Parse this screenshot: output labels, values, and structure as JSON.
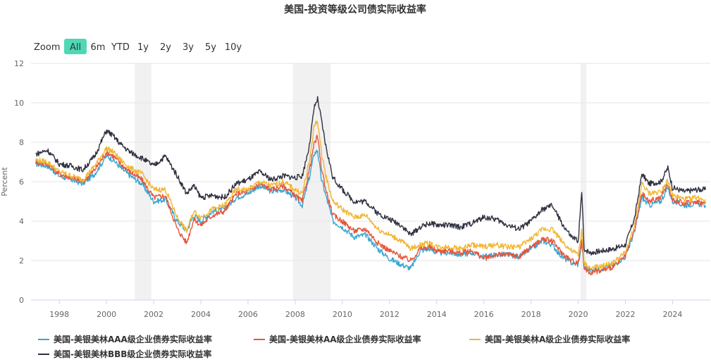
{
  "chart_data": {
    "type": "line",
    "title": "美国-投资等级公司债实际收益率",
    "xlabel": "",
    "ylabel": "Percent",
    "xlim": [
      1996.8,
      2025.6
    ],
    "ylim": [
      0,
      12
    ],
    "y_ticks": [
      0,
      2,
      4,
      6,
      8,
      10,
      12
    ],
    "x_ticks": [
      "1998",
      "2000",
      "2002",
      "2004",
      "2006",
      "2008",
      "2010",
      "2012",
      "2014",
      "2016",
      "2018",
      "2020",
      "2022",
      "2024"
    ],
    "recessions": [
      [
        2001.2,
        2001.9
      ],
      [
        2007.9,
        2009.5
      ],
      [
        2020.1,
        2020.35
      ]
    ],
    "series": [
      {
        "name": "美国-美银美林AAA级企业债券实际收益率",
        "color": "#3ba7d1",
        "x": [
          1997.0,
          1997.5,
          1998.0,
          1998.5,
          1999.0,
          1999.5,
          2000.0,
          2000.3,
          2000.6,
          2001.0,
          2001.5,
          2002.0,
          2002.5,
          2003.0,
          2003.4,
          2003.7,
          2004.0,
          2004.5,
          2005.0,
          2005.5,
          2006.0,
          2006.5,
          2007.0,
          2007.5,
          2008.0,
          2008.3,
          2008.6,
          2008.8,
          2008.95,
          2009.1,
          2009.3,
          2009.6,
          2010.0,
          2010.5,
          2011.0,
          2011.5,
          2012.0,
          2012.5,
          2012.9,
          2013.3,
          2013.7,
          2014.0,
          2014.5,
          2015.0,
          2015.5,
          2016.0,
          2016.5,
          2017.0,
          2017.5,
          2018.0,
          2018.5,
          2018.9,
          2019.3,
          2019.7,
          2020.0,
          2020.15,
          2020.25,
          2020.5,
          2021.0,
          2021.5,
          2022.0,
          2022.4,
          2022.7,
          2023.0,
          2023.5,
          2023.8,
          2024.0,
          2024.5,
          2025.0,
          2025.4
        ],
        "y": [
          6.9,
          6.8,
          6.3,
          6.1,
          5.9,
          6.4,
          7.3,
          7.1,
          6.7,
          6.3,
          5.9,
          5.0,
          5.1,
          4.0,
          3.5,
          4.3,
          4.0,
          4.5,
          4.6,
          5.2,
          5.4,
          5.8,
          5.5,
          5.6,
          5.2,
          4.8,
          6.2,
          7.4,
          7.6,
          6.2,
          5.3,
          4.0,
          3.7,
          3.2,
          3.3,
          2.6,
          2.1,
          1.8,
          1.6,
          2.5,
          2.6,
          2.4,
          2.4,
          2.3,
          2.4,
          2.2,
          2.3,
          2.3,
          2.2,
          2.6,
          3.0,
          2.8,
          2.2,
          1.9,
          1.8,
          2.9,
          1.7,
          1.5,
          1.6,
          1.8,
          2.2,
          3.5,
          5.2,
          4.8,
          5.0,
          5.7,
          5.0,
          4.8,
          4.9,
          4.8
        ]
      },
      {
        "name": "美国-美银美林AA级企业债券实际收益率",
        "color": "#e8553a",
        "x": [
          1997.0,
          1997.5,
          1998.0,
          1998.5,
          1999.0,
          1999.5,
          2000.0,
          2000.3,
          2000.6,
          2001.0,
          2001.5,
          2002.0,
          2002.5,
          2003.0,
          2003.4,
          2003.7,
          2004.0,
          2004.5,
          2005.0,
          2005.5,
          2006.0,
          2006.5,
          2007.0,
          2007.5,
          2008.0,
          2008.3,
          2008.6,
          2008.8,
          2008.95,
          2009.1,
          2009.3,
          2009.6,
          2010.0,
          2010.5,
          2011.0,
          2011.5,
          2012.0,
          2012.5,
          2012.9,
          2013.3,
          2013.7,
          2014.0,
          2014.5,
          2015.0,
          2015.5,
          2016.0,
          2016.5,
          2017.0,
          2017.5,
          2018.0,
          2018.5,
          2018.9,
          2019.3,
          2019.7,
          2020.0,
          2020.15,
          2020.25,
          2020.5,
          2021.0,
          2021.5,
          2022.0,
          2022.4,
          2022.7,
          2023.0,
          2023.5,
          2023.8,
          2024.0,
          2024.5,
          2025.0,
          2025.4
        ],
        "y": [
          7.0,
          6.9,
          6.4,
          6.2,
          6.0,
          6.6,
          7.5,
          7.3,
          6.9,
          6.5,
          6.1,
          5.2,
          5.3,
          3.6,
          2.9,
          4.1,
          3.8,
          4.3,
          4.5,
          5.4,
          5.5,
          5.9,
          5.6,
          5.8,
          5.3,
          5.0,
          6.6,
          7.9,
          8.3,
          6.8,
          5.6,
          4.3,
          4.0,
          3.5,
          3.6,
          2.9,
          2.5,
          2.2,
          2.0,
          2.6,
          2.7,
          2.5,
          2.5,
          2.4,
          2.5,
          2.1,
          2.3,
          2.3,
          2.2,
          2.7,
          3.1,
          3.0,
          2.4,
          2.0,
          1.9,
          3.1,
          1.6,
          1.4,
          1.5,
          1.7,
          2.2,
          3.6,
          5.4,
          5.0,
          5.2,
          5.9,
          5.1,
          4.9,
          5.0,
          4.9
        ]
      },
      {
        "name": "美国-美银美林A级企业债券实际收益率",
        "color": "#f2b632",
        "x": [
          1997.0,
          1997.5,
          1998.0,
          1998.5,
          1999.0,
          1999.5,
          2000.0,
          2000.3,
          2000.6,
          2001.0,
          2001.5,
          2002.0,
          2002.5,
          2003.0,
          2003.4,
          2003.7,
          2004.0,
          2004.5,
          2005.0,
          2005.5,
          2006.0,
          2006.5,
          2007.0,
          2007.5,
          2008.0,
          2008.3,
          2008.6,
          2008.8,
          2008.95,
          2009.1,
          2009.3,
          2009.6,
          2010.0,
          2010.5,
          2011.0,
          2011.5,
          2012.0,
          2012.5,
          2012.9,
          2013.3,
          2013.7,
          2014.0,
          2014.5,
          2015.0,
          2015.5,
          2016.0,
          2016.5,
          2017.0,
          2017.5,
          2018.0,
          2018.5,
          2018.9,
          2019.3,
          2019.7,
          2020.0,
          2020.15,
          2020.25,
          2020.5,
          2021.0,
          2021.5,
          2022.0,
          2022.4,
          2022.7,
          2023.0,
          2023.5,
          2023.8,
          2024.0,
          2024.5,
          2025.0,
          2025.4
        ],
        "y": [
          7.1,
          7.0,
          6.5,
          6.3,
          6.1,
          6.8,
          7.7,
          7.5,
          7.1,
          6.7,
          6.4,
          5.6,
          5.6,
          4.2,
          3.5,
          4.5,
          4.2,
          4.6,
          4.8,
          5.6,
          5.6,
          6.0,
          5.8,
          6.0,
          5.6,
          5.4,
          7.0,
          8.8,
          9.1,
          7.6,
          6.3,
          5.0,
          4.6,
          4.2,
          4.3,
          3.6,
          3.3,
          3.0,
          2.6,
          2.8,
          2.9,
          2.7,
          2.7,
          2.6,
          2.8,
          2.7,
          2.8,
          2.7,
          2.7,
          3.1,
          3.6,
          3.6,
          3.0,
          2.5,
          2.3,
          3.5,
          1.9,
          1.6,
          1.7,
          1.9,
          2.4,
          3.8,
          5.9,
          5.4,
          5.5,
          6.1,
          5.3,
          5.1,
          5.2,
          5.1
        ]
      },
      {
        "name": "美国-美银美林BBB级企业债券实际收益率",
        "color": "#2f3140",
        "x": [
          1997.0,
          1997.5,
          1998.0,
          1998.5,
          1999.0,
          1999.5,
          2000.0,
          2000.3,
          2000.6,
          2001.0,
          2001.5,
          2002.0,
          2002.5,
          2003.0,
          2003.4,
          2003.7,
          2004.0,
          2004.5,
          2005.0,
          2005.5,
          2006.0,
          2006.5,
          2007.0,
          2007.5,
          2008.0,
          2008.3,
          2008.6,
          2008.8,
          2008.95,
          2009.1,
          2009.3,
          2009.6,
          2010.0,
          2010.5,
          2011.0,
          2011.5,
          2012.0,
          2012.5,
          2012.9,
          2013.3,
          2013.7,
          2014.0,
          2014.5,
          2015.0,
          2015.5,
          2016.0,
          2016.5,
          2017.0,
          2017.5,
          2018.0,
          2018.5,
          2018.9,
          2019.3,
          2019.7,
          2020.0,
          2020.15,
          2020.25,
          2020.5,
          2021.0,
          2021.5,
          2022.0,
          2022.4,
          2022.7,
          2023.0,
          2023.5,
          2023.8,
          2024.0,
          2024.5,
          2025.0,
          2025.4
        ],
        "y": [
          7.4,
          7.6,
          6.9,
          6.8,
          6.6,
          7.3,
          8.6,
          8.3,
          7.9,
          7.5,
          7.2,
          6.8,
          7.3,
          6.3,
          5.4,
          5.8,
          5.2,
          5.3,
          5.2,
          5.9,
          6.1,
          6.5,
          6.1,
          6.3,
          6.2,
          6.3,
          7.8,
          9.7,
          10.2,
          9.2,
          7.8,
          6.2,
          5.6,
          5.0,
          5.0,
          4.4,
          4.1,
          3.8,
          3.3,
          3.7,
          3.9,
          3.8,
          3.8,
          3.7,
          3.9,
          4.2,
          4.1,
          3.8,
          3.6,
          4.0,
          4.6,
          4.8,
          3.9,
          3.2,
          3.0,
          5.5,
          2.6,
          2.4,
          2.5,
          2.6,
          2.8,
          4.2,
          6.4,
          5.9,
          6.0,
          6.7,
          5.7,
          5.5,
          5.6,
          5.6
        ]
      }
    ]
  },
  "range_selector": {
    "zoom_label": "Zoom",
    "buttons": [
      "All",
      "6m",
      "YTD",
      "1y",
      "2y",
      "3y",
      "5y",
      "10y"
    ],
    "selected": "All",
    "selected_color": "#4fd8b4"
  },
  "legend_items": [
    "美国-美银美林AAA级企业债券实际收益率",
    "美国-美银美林AA级企业债券实际收益率",
    "美国-美银美林A级企业债券实际收益率",
    "美国-美银美林BBB级企业债券实际收益率"
  ]
}
